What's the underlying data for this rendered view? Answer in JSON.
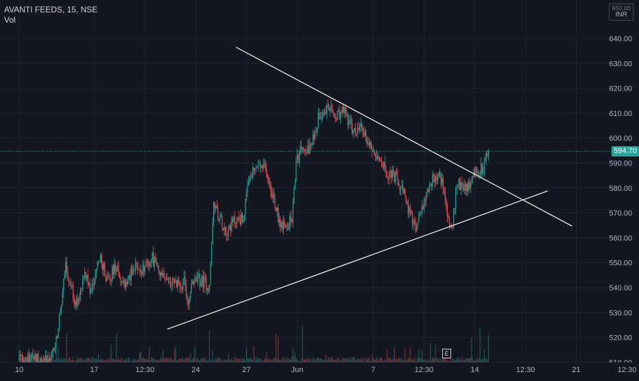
{
  "legend": {
    "symbol": "AVANTI FEEDS, 15, NSE",
    "volume": "Vol"
  },
  "currency": {
    "top": "650.00",
    "unit": "INR"
  },
  "earnings_marker": "E",
  "colors": {
    "up": "#26a69a",
    "down": "#ef5350",
    "background": "#131722",
    "grid": "#1e222d",
    "text": "#d1d4dc",
    "trendline": "#ffffff",
    "last_price": "#26a69a"
  },
  "chart_data": {
    "type": "candlestick",
    "title": "AVANTI FEEDS, 15, NSE",
    "ylim": [
      505,
      650
    ],
    "y_ticks": [
      510,
      520,
      530,
      540,
      550,
      560,
      570,
      580,
      590,
      600,
      610,
      620,
      630,
      640
    ],
    "y_tick_labels": [
      "510.00",
      "520.00",
      "530.00",
      "540.00",
      "550.00",
      "560.00",
      "570.00",
      "580.00",
      "590.00",
      "600.00",
      "610.00",
      "620.00",
      "630.00",
      "640.00"
    ],
    "x_ticks": [
      {
        "label": "10",
        "idx": 0
      },
      {
        "label": "17",
        "idx": 71
      },
      {
        "label": "12:30",
        "idx": 119
      },
      {
        "label": "24",
        "idx": 167
      },
      {
        "label": "27",
        "idx": 215
      },
      {
        "label": "Jun",
        "idx": 263
      },
      {
        "label": "7",
        "idx": 335
      },
      {
        "label": "12:30",
        "idx": 383
      },
      {
        "label": "14",
        "idx": 431
      },
      {
        "label": "12:30",
        "idx": 479
      },
      {
        "label": "21",
        "idx": 527
      },
      {
        "label": "12:30",
        "idx": 575
      }
    ],
    "x_index_range": [
      -3,
      599
    ],
    "last_price": 594.7,
    "last_price_label": "594.70",
    "anchors": [
      {
        "i": 0,
        "p": 511
      },
      {
        "i": 30,
        "p": 511
      },
      {
        "i": 36,
        "p": 522
      },
      {
        "i": 44,
        "p": 548
      },
      {
        "i": 54,
        "p": 532
      },
      {
        "i": 62,
        "p": 545
      },
      {
        "i": 68,
        "p": 538
      },
      {
        "i": 76,
        "p": 552
      },
      {
        "i": 84,
        "p": 543
      },
      {
        "i": 92,
        "p": 549
      },
      {
        "i": 100,
        "p": 541
      },
      {
        "i": 108,
        "p": 548
      },
      {
        "i": 116,
        "p": 547
      },
      {
        "i": 122,
        "p": 551
      },
      {
        "i": 126,
        "p": 552
      },
      {
        "i": 132,
        "p": 546
      },
      {
        "i": 140,
        "p": 544
      },
      {
        "i": 148,
        "p": 541
      },
      {
        "i": 156,
        "p": 542
      },
      {
        "i": 160,
        "p": 534
      },
      {
        "i": 164,
        "p": 542
      },
      {
        "i": 170,
        "p": 543
      },
      {
        "i": 176,
        "p": 542
      },
      {
        "i": 180,
        "p": 540
      },
      {
        "i": 184,
        "p": 574
      },
      {
        "i": 190,
        "p": 568
      },
      {
        "i": 196,
        "p": 563
      },
      {
        "i": 204,
        "p": 567
      },
      {
        "i": 212,
        "p": 568
      },
      {
        "i": 218,
        "p": 584
      },
      {
        "i": 226,
        "p": 589
      },
      {
        "i": 234,
        "p": 587
      },
      {
        "i": 240,
        "p": 577
      },
      {
        "i": 246,
        "p": 567
      },
      {
        "i": 252,
        "p": 563
      },
      {
        "i": 258,
        "p": 568
      },
      {
        "i": 262,
        "p": 590
      },
      {
        "i": 268,
        "p": 597
      },
      {
        "i": 276,
        "p": 596
      },
      {
        "i": 284,
        "p": 610
      },
      {
        "i": 292,
        "p": 612
      },
      {
        "i": 300,
        "p": 608
      },
      {
        "i": 308,
        "p": 611
      },
      {
        "i": 316,
        "p": 602
      },
      {
        "i": 324,
        "p": 604
      },
      {
        "i": 332,
        "p": 597
      },
      {
        "i": 340,
        "p": 593
      },
      {
        "i": 348,
        "p": 586
      },
      {
        "i": 356,
        "p": 584
      },
      {
        "i": 364,
        "p": 577
      },
      {
        "i": 372,
        "p": 566
      },
      {
        "i": 376,
        "p": 563
      },
      {
        "i": 380,
        "p": 571
      },
      {
        "i": 386,
        "p": 579
      },
      {
        "i": 392,
        "p": 584
      },
      {
        "i": 398,
        "p": 585
      },
      {
        "i": 402,
        "p": 580
      },
      {
        "i": 406,
        "p": 566
      },
      {
        "i": 410,
        "p": 564
      },
      {
        "i": 414,
        "p": 582
      },
      {
        "i": 420,
        "p": 581
      },
      {
        "i": 426,
        "p": 580
      },
      {
        "i": 430,
        "p": 586
      },
      {
        "i": 436,
        "p": 587
      },
      {
        "i": 440,
        "p": 589
      },
      {
        "i": 444,
        "p": 594.7
      }
    ],
    "trendlines": [
      {
        "name": "descending-resistance",
        "i1": 205,
        "p1": 636.5,
        "i2": 523,
        "p2": 564.7
      },
      {
        "name": "ascending-support",
        "i1": 140,
        "p1": 523.3,
        "i2": 500,
        "p2": 578.8
      }
    ]
  }
}
